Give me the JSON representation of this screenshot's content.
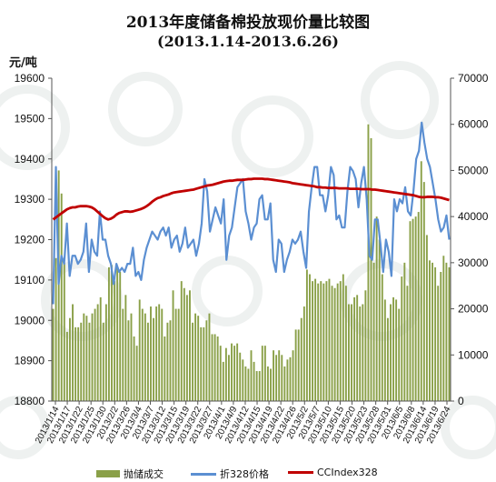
{
  "title": "2013年度储备棉投放现价量比较图",
  "subtitle": "(2013.1.14-2013.6.26)",
  "y_left_unit": "元/吨",
  "chart_data": {
    "type": "bar+line",
    "x_tick_labels": [
      "2013/1/14",
      "2013/1/17",
      "2013/1/22",
      "2013/1/25",
      "2013/1/30",
      "2013/2/2",
      "2013/3/26",
      "2013/3/4",
      "2013/3/7",
      "2013/3/12",
      "2013/3/15",
      "2013/3/19",
      "2013/3/22",
      "2013/3/27",
      "2013/4/1",
      "2013/4/9",
      "2013/4/12",
      "2013/4/15",
      "2013/4/19",
      "2013/4/22",
      "2013/4/26",
      "2013/5/2",
      "2013/5/7",
      "2013/5/10",
      "2013/5/15",
      "2013/5/20",
      "2013/5/23",
      "2013/5/28",
      "2013/5/31",
      "2013/6/5",
      "2013/6/8",
      "2013/6/14",
      "2013/6/19",
      "2013/6/24"
    ],
    "y_left": {
      "range": [
        18800,
        19600
      ],
      "ticks": [
        18800,
        18900,
        19000,
        19100,
        19200,
        19300,
        19400,
        19500,
        19600
      ]
    },
    "y_right": {
      "range": [
        0,
        70000
      ],
      "ticks": [
        0,
        10000,
        20000,
        30000,
        40000,
        50000,
        60000,
        70000
      ]
    },
    "series": [
      {
        "name": "抛储成交",
        "axis": "right",
        "color": "#8aa048",
        "values": [
          20000,
          31000,
          50000,
          45000,
          30000,
          15000,
          18000,
          21000,
          16000,
          16000,
          17000,
          19000,
          18500,
          17000,
          19000,
          20000,
          21000,
          22500,
          17000,
          21000,
          29000,
          29500,
          26000,
          29000,
          28000,
          20000,
          23000,
          17500,
          19000,
          14000,
          12000,
          22000,
          20000,
          19000,
          17000,
          20500,
          18000,
          20500,
          21000,
          20000,
          14000,
          17000,
          17500,
          24000,
          20000,
          20000,
          26000,
          24500,
          23000,
          24000,
          17000,
          19000,
          18500,
          16000,
          16000,
          17500,
          19000,
          14500,
          14500,
          14000,
          12000,
          8500,
          11500,
          10000,
          12500,
          12000,
          12500,
          10500,
          9000,
          7500,
          7000,
          11000,
          8500,
          6500,
          6500,
          12000,
          12000,
          7500,
          7000,
          11000,
          10000,
          11000,
          10000,
          7500,
          9000,
          9500,
          11000,
          15500,
          15500,
          18000,
          20500,
          28500,
          27500,
          26000,
          26500,
          25500,
          26000,
          25500,
          26000,
          26500,
          25000,
          24500,
          25500,
          26000,
          27500,
          25000,
          21000,
          21000,
          22500,
          23000,
          20500,
          21000,
          24000,
          60000,
          57000,
          30000,
          40000,
          35000,
          27500,
          22000,
          18000,
          21000,
          22500,
          22000,
          20000,
          27000,
          30000,
          25000,
          39000,
          39500,
          40000,
          41000,
          52000,
          47500,
          36000,
          30500,
          30000,
          29000,
          25000,
          28000,
          31500,
          30000,
          29000
        ]
      },
      {
        "name": "折328价格",
        "axis": "left",
        "color": "#5b8fd2",
        "values": [
          19040,
          19380,
          19090,
          19160,
          19140,
          19240,
          19110,
          19160,
          19160,
          19140,
          19150,
          19170,
          19240,
          19120,
          19200,
          19170,
          19160,
          19270,
          19200,
          19200,
          19160,
          19140,
          19090,
          19140,
          19120,
          19130,
          19120,
          19140,
          19140,
          19180,
          19110,
          19120,
          19100,
          19150,
          19180,
          19200,
          19220,
          19210,
          19200,
          19220,
          19230,
          19210,
          19230,
          19180,
          19200,
          19210,
          19170,
          19190,
          19230,
          19180,
          19190,
          19200,
          19160,
          19190,
          19240,
          19350,
          19320,
          19220,
          19250,
          19280,
          19260,
          19240,
          19300,
          19150,
          19210,
          19230,
          19280,
          19330,
          19340,
          19350,
          19270,
          19240,
          19200,
          19230,
          19240,
          19300,
          19310,
          19250,
          19250,
          19290,
          19150,
          19120,
          19200,
          19190,
          19120,
          19150,
          19170,
          19200,
          19190,
          19200,
          19220,
          19170,
          19130,
          19270,
          19330,
          19380,
          19380,
          19310,
          19310,
          19270,
          19310,
          19380,
          19360,
          19250,
          19260,
          19230,
          19230,
          19320,
          19380,
          19370,
          19350,
          19280,
          19340,
          19380,
          19300,
          19160,
          19150,
          19250,
          19250,
          19190,
          19120,
          19200,
          19170,
          19110,
          19300,
          19270,
          19300,
          19290,
          19330,
          19270,
          19260,
          19320,
          19400,
          19420,
          19490,
          19440,
          19400,
          19380,
          19340,
          19300,
          19250,
          19220,
          19230,
          19260,
          19200
        ]
      },
      {
        "name": "CCIndex328",
        "axis": "left",
        "color": "#c00000",
        "values": [
          19250,
          19255,
          19260,
          19265,
          19270,
          19275,
          19278,
          19280,
          19280,
          19282,
          19283,
          19283,
          19283,
          19282,
          19280,
          19276,
          19270,
          19264,
          19258,
          19253,
          19250,
          19252,
          19256,
          19262,
          19266,
          19268,
          19270,
          19270,
          19269,
          19270,
          19272,
          19274,
          19276,
          19279,
          19283,
          19288,
          19294,
          19299,
          19303,
          19305,
          19308,
          19310,
          19312,
          19315,
          19317,
          19318,
          19319,
          19320,
          19321,
          19322,
          19323,
          19324,
          19326,
          19328,
          19330,
          19332,
          19334,
          19335,
          19336,
          19338,
          19340,
          19342,
          19344,
          19345,
          19346,
          19346,
          19347,
          19348,
          19348,
          19348,
          19349,
          19350,
          19350,
          19351,
          19351,
          19351,
          19351,
          19350,
          19350,
          19349,
          19348,
          19347,
          19346,
          19345,
          19344,
          19343,
          19342,
          19340,
          19339,
          19338,
          19337,
          19336,
          19335,
          19334,
          19333,
          19332,
          19330,
          19330,
          19329,
          19329,
          19328,
          19328,
          19328,
          19328,
          19327,
          19327,
          19327,
          19327,
          19326,
          19326,
          19326,
          19326,
          19325,
          19325,
          19325,
          19325,
          19324,
          19324,
          19323,
          19322,
          19321,
          19320,
          19319,
          19318,
          19317,
          19316,
          19315,
          19314,
          19313,
          19312,
          19311,
          19310,
          19308,
          19306,
          19305,
          19305,
          19306,
          19306,
          19306,
          19305,
          19305,
          19304,
          19302,
          19300,
          19298
        ]
      }
    ],
    "legend_position": "bottom",
    "grid": false
  }
}
